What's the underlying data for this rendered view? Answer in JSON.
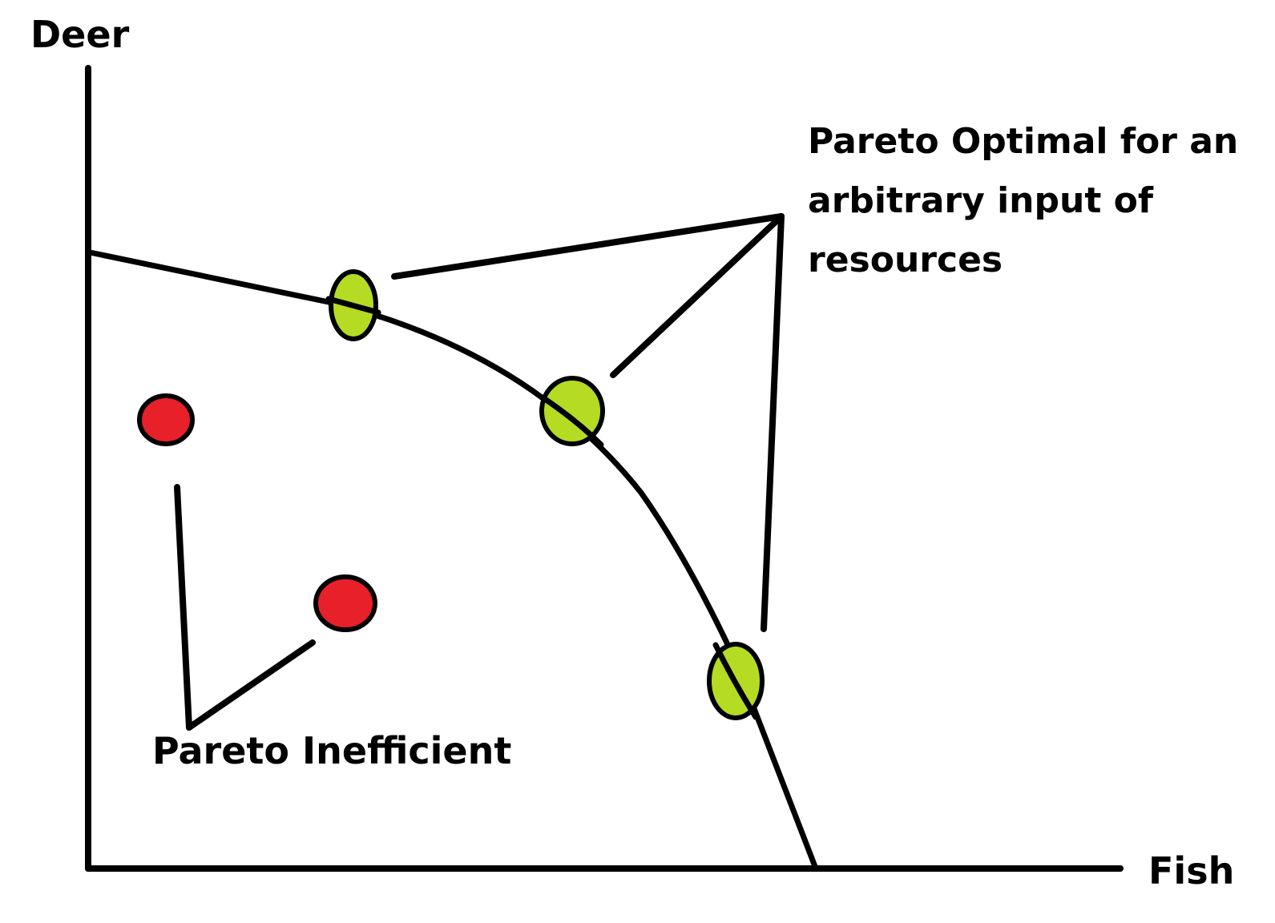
{
  "axes": {
    "y_label": "Deer",
    "x_label": "Fish"
  },
  "annotations": {
    "optimal_lines": [
      "Pareto Optimal for an",
      "arbitrary input of",
      "resources"
    ],
    "inefficient": "Pareto Inefficient"
  },
  "colors": {
    "optimal_point": "#b5dc22",
    "inefficient_point": "#e8202a",
    "ink": "#000000"
  }
}
